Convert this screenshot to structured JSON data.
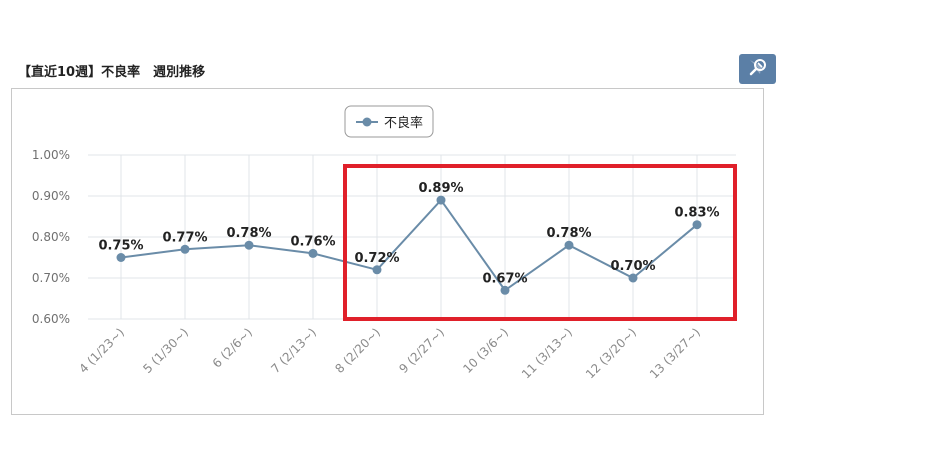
{
  "header": {
    "title": "【直近10週】不良率　週別推移",
    "export_icon": "chart-export-icon"
  },
  "chart_data": {
    "type": "line",
    "title": "",
    "xlabel": "",
    "ylabel": "",
    "categories": [
      "4 (1/23~)",
      "5 (1/30~)",
      "6 (2/6~)",
      "7 (2/13~)",
      "8 (2/20~)",
      "9 (2/27~)",
      "10 (3/6~)",
      "11 (3/13~)",
      "12 (3/20~)",
      "13 (3/27~)"
    ],
    "series": [
      {
        "name": "不良率",
        "values": [
          0.75,
          0.77,
          0.78,
          0.76,
          0.72,
          0.89,
          0.67,
          0.78,
          0.7,
          0.83
        ],
        "labels": [
          "0.75%",
          "0.77%",
          "0.78%",
          "0.76%",
          "0.72%",
          "0.89%",
          "0.67%",
          "0.78%",
          "0.70%",
          "0.83%"
        ],
        "color": "#6a8ca8"
      }
    ],
    "ylim": [
      0.6,
      1.0
    ],
    "yticks": [
      "0.60%",
      "0.70%",
      "0.80%",
      "0.90%",
      "1.00%"
    ],
    "grid": true,
    "legend": "top-center",
    "annotation": {
      "type": "highlight-rectangle",
      "color": "#e0202a",
      "from_category": "8 (2/20~)",
      "to_category": "13 (3/27~)"
    }
  }
}
